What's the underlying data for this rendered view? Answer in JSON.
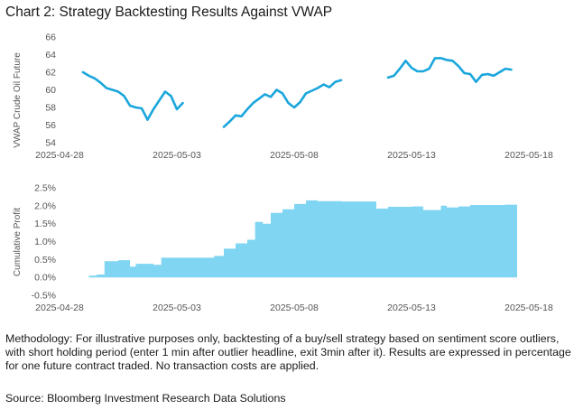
{
  "title": "Chart 2: Strategy Backtesting Results Against VWAP",
  "methodology": "Methodology: For illustrative purposes only, backtesting of a buy/sell strategy based on sentiment score outliers, with short holding period (enter 1 min after outlier headline, exit 3min after it). Results are expressed in percentage for one future contract traded. No transaction costs are applied.",
  "source": "Source: Bloomberg Investment Research Data Solutions",
  "colors": {
    "line": "#1aa6dc",
    "area": "#7fd5f2"
  },
  "chart_data": [
    {
      "type": "line",
      "ylabel": "VWAP Crude Oil Future",
      "xlim": [
        "2025-04-28",
        "2025-05-18"
      ],
      "ylim": [
        54,
        66
      ],
      "x_ticks": [
        "2025-04-28",
        "2025-05-03",
        "2025-05-08",
        "2025-05-13",
        "2025-05-18"
      ],
      "y_ticks": [
        54,
        56,
        58,
        60,
        62,
        64,
        66
      ],
      "grid": false,
      "segments": [
        [
          [
            "2025-04-29 00:00",
            62.0
          ],
          [
            "2025-04-29 06:00",
            61.6
          ],
          [
            "2025-04-29 12:00",
            61.3
          ],
          [
            "2025-04-29 18:00",
            60.8
          ],
          [
            "2025-04-30 00:00",
            60.2
          ],
          [
            "2025-04-30 06:00",
            60.0
          ],
          [
            "2025-04-30 12:00",
            59.8
          ],
          [
            "2025-04-30 18:00",
            59.3
          ],
          [
            "2025-05-01 00:00",
            58.2
          ],
          [
            "2025-05-01 06:00",
            58.0
          ],
          [
            "2025-05-01 12:00",
            57.9
          ],
          [
            "2025-05-01 18:00",
            56.6
          ],
          [
            "2025-05-02 00:00",
            57.8
          ],
          [
            "2025-05-02 06:00",
            58.8
          ],
          [
            "2025-05-02 12:00",
            59.8
          ],
          [
            "2025-05-02 18:00",
            59.3
          ],
          [
            "2025-05-03 00:00",
            57.8
          ],
          [
            "2025-05-03 06:00",
            58.5
          ]
        ],
        [
          [
            "2025-05-05 00:00",
            55.8
          ],
          [
            "2025-05-05 06:00",
            56.4
          ],
          [
            "2025-05-05 12:00",
            57.1
          ],
          [
            "2025-05-05 18:00",
            57.0
          ],
          [
            "2025-05-06 00:00",
            57.8
          ],
          [
            "2025-05-06 06:00",
            58.5
          ],
          [
            "2025-05-06 12:00",
            59.0
          ],
          [
            "2025-05-06 18:00",
            59.5
          ],
          [
            "2025-05-07 00:00",
            59.2
          ],
          [
            "2025-05-07 06:00",
            60.0
          ],
          [
            "2025-05-07 12:00",
            59.6
          ],
          [
            "2025-05-07 18:00",
            58.5
          ],
          [
            "2025-05-08 00:00",
            58.0
          ],
          [
            "2025-05-08 06:00",
            58.6
          ],
          [
            "2025-05-08 12:00",
            59.6
          ],
          [
            "2025-05-08 18:00",
            59.9
          ],
          [
            "2025-05-09 00:00",
            60.2
          ],
          [
            "2025-05-09 06:00",
            60.6
          ],
          [
            "2025-05-09 12:00",
            60.3
          ],
          [
            "2025-05-09 18:00",
            60.9
          ],
          [
            "2025-05-10 00:00",
            61.1
          ]
        ],
        [
          [
            "2025-05-12 00:00",
            61.4
          ],
          [
            "2025-05-12 06:00",
            61.6
          ],
          [
            "2025-05-12 12:00",
            62.4
          ],
          [
            "2025-05-12 18:00",
            63.3
          ],
          [
            "2025-05-13 00:00",
            62.5
          ],
          [
            "2025-05-13 06:00",
            62.1
          ],
          [
            "2025-05-13 12:00",
            62.1
          ],
          [
            "2025-05-13 18:00",
            62.4
          ],
          [
            "2025-05-14 00:00",
            63.6
          ],
          [
            "2025-05-14 06:00",
            63.6
          ],
          [
            "2025-05-14 12:00",
            63.4
          ],
          [
            "2025-05-14 18:00",
            63.3
          ],
          [
            "2025-05-15 00:00",
            62.7
          ],
          [
            "2025-05-15 06:00",
            61.9
          ],
          [
            "2025-05-15 12:00",
            61.8
          ],
          [
            "2025-05-15 18:00",
            60.9
          ],
          [
            "2025-05-16 00:00",
            61.7
          ],
          [
            "2025-05-16 06:00",
            61.8
          ],
          [
            "2025-05-16 12:00",
            61.6
          ],
          [
            "2025-05-16 18:00",
            62.0
          ],
          [
            "2025-05-17 00:00",
            62.4
          ],
          [
            "2025-05-17 06:00",
            62.3
          ]
        ]
      ]
    },
    {
      "type": "area",
      "ylabel": "Cumulative Profit",
      "xlim": [
        "2025-04-28",
        "2025-05-18"
      ],
      "ylim": [
        -0.5,
        2.5
      ],
      "x_ticks": [
        "2025-04-28",
        "2025-05-03",
        "2025-05-08",
        "2025-05-13",
        "2025-05-18"
      ],
      "y_ticks": [
        -0.5,
        0.0,
        0.5,
        1.0,
        1.5,
        2.0,
        2.5
      ],
      "y_tick_labels": [
        "-0.5%",
        "0.0%",
        "0.5%",
        "1.0%",
        "1.5%",
        "2.0%",
        "2.5%"
      ],
      "grid": false,
      "steps": [
        [
          "2025-04-29 00:00",
          0.0
        ],
        [
          "2025-04-29 06:00",
          0.05
        ],
        [
          "2025-04-29 14:00",
          0.08
        ],
        [
          "2025-04-29 22:00",
          0.45
        ],
        [
          "2025-04-30 12:00",
          0.48
        ],
        [
          "2025-05-01 00:00",
          0.3
        ],
        [
          "2025-05-01 06:00",
          0.38
        ],
        [
          "2025-05-02 00:00",
          0.35
        ],
        [
          "2025-05-02 08:00",
          0.55
        ],
        [
          "2025-05-03 00:00",
          0.55
        ],
        [
          "2025-05-04 00:00",
          0.55
        ],
        [
          "2025-05-04 14:00",
          0.6
        ],
        [
          "2025-05-05 00:00",
          0.8
        ],
        [
          "2025-05-05 12:00",
          0.95
        ],
        [
          "2025-05-06 00:00",
          1.05
        ],
        [
          "2025-05-06 08:00",
          1.55
        ],
        [
          "2025-05-06 16:00",
          1.5
        ],
        [
          "2025-05-07 00:00",
          1.8
        ],
        [
          "2025-05-07 12:00",
          1.9
        ],
        [
          "2025-05-08 00:00",
          2.05
        ],
        [
          "2025-05-08 12:00",
          2.15
        ],
        [
          "2025-05-09 00:00",
          2.13
        ],
        [
          "2025-05-10 00:00",
          2.12
        ],
        [
          "2025-05-11 00:00",
          2.12
        ],
        [
          "2025-05-11 12:00",
          1.92
        ],
        [
          "2025-05-12 00:00",
          1.97
        ],
        [
          "2025-05-13 00:00",
          1.98
        ],
        [
          "2025-05-13 12:00",
          1.88
        ],
        [
          "2025-05-14 06:00",
          2.0
        ],
        [
          "2025-05-14 12:00",
          1.95
        ],
        [
          "2025-05-15 00:00",
          1.98
        ],
        [
          "2025-05-15 12:00",
          2.02
        ],
        [
          "2025-05-17 00:00",
          2.03
        ],
        [
          "2025-05-17 12:00",
          2.02
        ]
      ],
      "end": "2025-05-17 12:00"
    }
  ]
}
